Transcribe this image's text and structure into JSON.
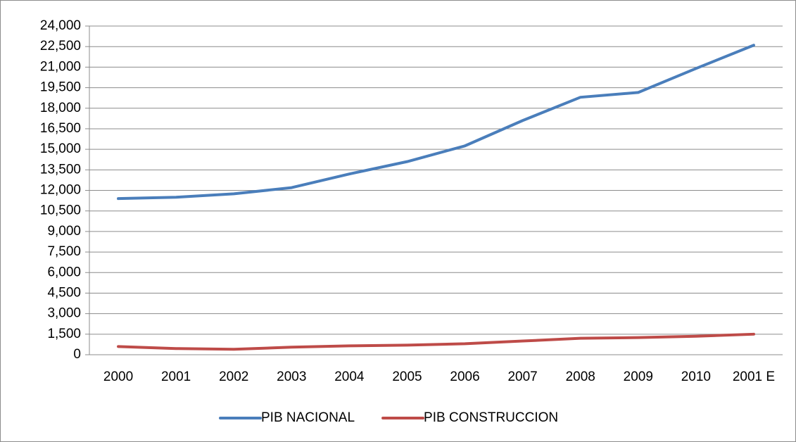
{
  "chart_data": {
    "type": "line",
    "categories": [
      "2000",
      "2001",
      "2002",
      "2003",
      "2004",
      "2005",
      "2006",
      "2007",
      "2008",
      "2009",
      "2010",
      "2001 E"
    ],
    "series": [
      {
        "name": "PIB NACIONAL",
        "color": "#4a7ebb",
        "values": [
          11400,
          11500,
          11750,
          12200,
          13200,
          14100,
          15250,
          17100,
          18800,
          19150,
          20900,
          22600
        ]
      },
      {
        "name": "PIB CONSTRUCCION",
        "color": "#be4b48",
        "values": [
          600,
          450,
          400,
          550,
          650,
          700,
          800,
          1000,
          1200,
          1250,
          1350,
          1500
        ]
      }
    ],
    "ylim": [
      0,
      24000
    ],
    "yticks": [
      0,
      {
        "value": 1500,
        "label": "1,500"
      },
      {
        "value": 3000,
        "label": "3,000"
      },
      {
        "value": 4500,
        "label": "4,500"
      },
      {
        "value": 6000,
        "label": "6,000"
      },
      {
        "value": 7500,
        "label": "7,500"
      },
      {
        "value": 9000,
        "label": "9,000"
      },
      {
        "value": 10500,
        "label": "10,500"
      },
      {
        "value": 12000,
        "label": "12,000"
      },
      {
        "value": 13500,
        "label": "13,500"
      },
      {
        "value": 15000,
        "label": "15,000"
      },
      {
        "value": 16500,
        "label": "16,500"
      },
      {
        "value": 18000,
        "label": "18,000"
      },
      {
        "value": 19500,
        "label": "19,500"
      },
      {
        "value": 21000,
        "label": "21,000"
      },
      {
        "value": 22500,
        "label": "22,500"
      },
      {
        "value": 24000,
        "label": "24,000"
      }
    ],
    "grid": true,
    "legend": "bottom"
  }
}
